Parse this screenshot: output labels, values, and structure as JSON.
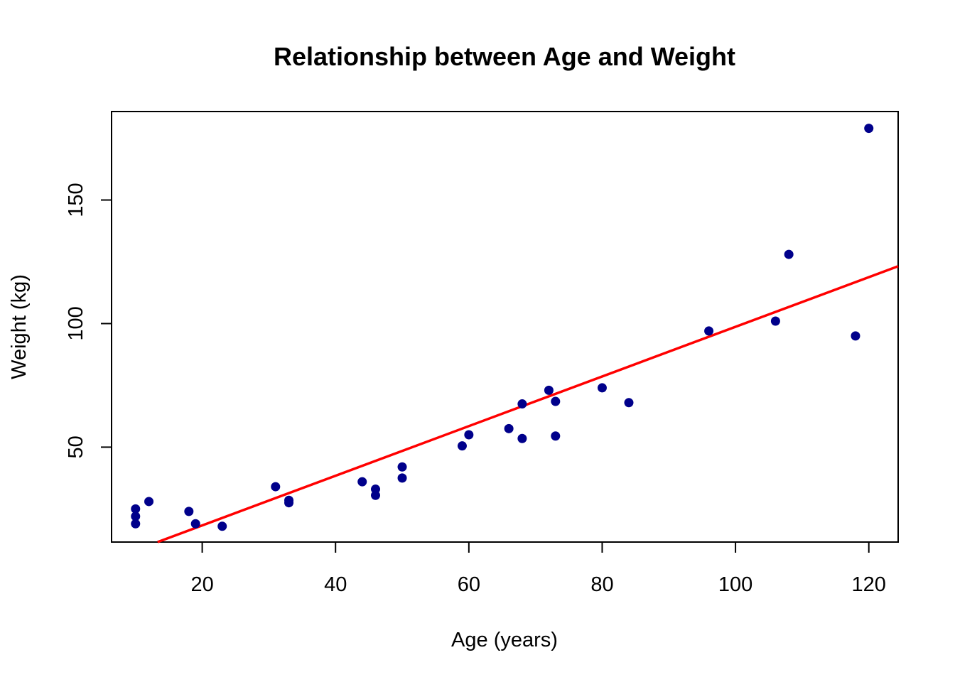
{
  "chart_data": {
    "type": "scatter",
    "title": "Relationship between Age and Weight",
    "xlabel": "Age (years)",
    "ylabel": "Weight (kg)",
    "xlim": [
      6.4,
      124.4
    ],
    "ylim": [
      11.6,
      185.8
    ],
    "x_ticks": [
      20,
      40,
      60,
      80,
      100,
      120
    ],
    "y_ticks": [
      50,
      100,
      150
    ],
    "grid": false,
    "legend": "none",
    "points": [
      {
        "x": 10,
        "y": 25
      },
      {
        "x": 10,
        "y": 22
      },
      {
        "x": 10,
        "y": 19
      },
      {
        "x": 12,
        "y": 28
      },
      {
        "x": 18,
        "y": 24
      },
      {
        "x": 19,
        "y": 19
      },
      {
        "x": 23,
        "y": 18
      },
      {
        "x": 31,
        "y": 34
      },
      {
        "x": 33,
        "y": 28.5
      },
      {
        "x": 33,
        "y": 27.5
      },
      {
        "x": 44,
        "y": 36
      },
      {
        "x": 46,
        "y": 33
      },
      {
        "x": 46,
        "y": 30.5
      },
      {
        "x": 50,
        "y": 42
      },
      {
        "x": 50,
        "y": 37.5
      },
      {
        "x": 59,
        "y": 50.5
      },
      {
        "x": 60,
        "y": 55
      },
      {
        "x": 66,
        "y": 57.5
      },
      {
        "x": 68,
        "y": 67.5
      },
      {
        "x": 68,
        "y": 53.5
      },
      {
        "x": 72,
        "y": 73
      },
      {
        "x": 73,
        "y": 68.5
      },
      {
        "x": 73,
        "y": 54.5
      },
      {
        "x": 80,
        "y": 74
      },
      {
        "x": 84,
        "y": 68
      },
      {
        "x": 96,
        "y": 97
      },
      {
        "x": 106,
        "y": 101
      },
      {
        "x": 108,
        "y": 128
      },
      {
        "x": 118,
        "y": 95
      },
      {
        "x": 120,
        "y": 179
      }
    ],
    "fit_line": {
      "x": [
        13.3,
        124.4
      ],
      "y": [
        11.6,
        123.2
      ]
    },
    "colors": {
      "points": "#00008b",
      "fit_line": "#ff0000",
      "axes": "#000000"
    }
  }
}
